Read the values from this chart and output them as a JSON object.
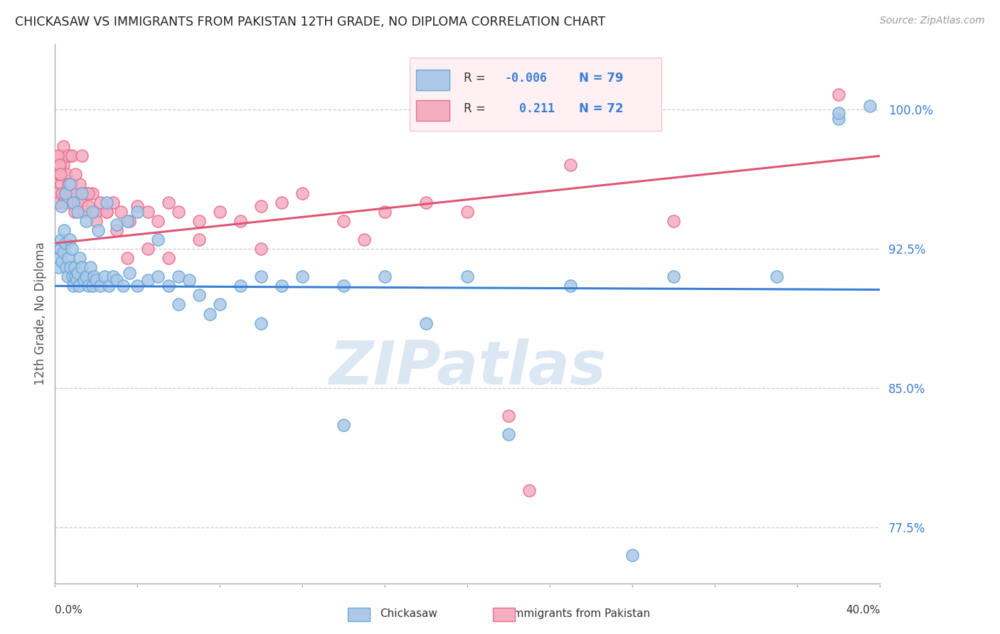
{
  "title": "CHICKASAW VS IMMIGRANTS FROM PAKISTAN 12TH GRADE, NO DIPLOMA CORRELATION CHART",
  "source_text": "Source: ZipAtlas.com",
  "ylabel_label": "12th Grade, No Diploma",
  "xmin": 0.0,
  "xmax": 40.0,
  "ymin": 74.5,
  "ymax": 103.5,
  "ylabel_ticks": [
    77.5,
    85.0,
    92.5,
    100.0
  ],
  "legend_blue_r": "-0.006",
  "legend_blue_n": "79",
  "legend_pink_r": "0.211",
  "legend_pink_n": "72",
  "blue_color": "#adc8e8",
  "pink_color": "#f5adc0",
  "blue_edge": "#6aaad8",
  "pink_edge": "#e87090",
  "trend_blue_color": "#3a7fd5",
  "trend_pink_color": "#e05575",
  "watermark_color": "#c5d8ee",
  "blue_trend_y0": 90.5,
  "blue_trend_y1": 90.3,
  "pink_trend_y0": 92.8,
  "pink_trend_y1": 97.5,
  "blue_x": [
    0.15,
    0.2,
    0.25,
    0.3,
    0.35,
    0.4,
    0.45,
    0.5,
    0.55,
    0.6,
    0.65,
    0.7,
    0.75,
    0.8,
    0.85,
    0.9,
    0.95,
    1.0,
    1.05,
    1.1,
    1.15,
    1.2,
    1.3,
    1.4,
    1.5,
    1.6,
    1.7,
    1.8,
    1.9,
    2.0,
    2.2,
    2.4,
    2.6,
    2.8,
    3.0,
    3.3,
    3.6,
    4.0,
    4.5,
    5.0,
    5.5,
    6.0,
    6.5,
    7.0,
    8.0,
    9.0,
    10.0,
    11.0,
    12.0,
    14.0,
    16.0,
    20.0,
    25.0,
    30.0,
    35.0,
    38.0,
    0.3,
    0.5,
    0.7,
    0.9,
    1.1,
    1.3,
    1.5,
    1.8,
    2.1,
    2.5,
    3.0,
    3.5,
    4.0,
    5.0,
    6.0,
    7.5,
    10.0,
    14.0,
    18.0,
    22.0,
    28.0,
    38.0,
    39.5
  ],
  "blue_y": [
    91.5,
    92.0,
    92.5,
    93.0,
    91.8,
    92.3,
    93.5,
    92.8,
    91.5,
    91.0,
    92.0,
    93.0,
    91.5,
    92.5,
    91.0,
    90.5,
    91.5,
    91.0,
    90.8,
    91.2,
    90.5,
    92.0,
    91.5,
    90.8,
    91.0,
    90.5,
    91.5,
    90.5,
    91.0,
    90.8,
    90.5,
    91.0,
    90.5,
    91.0,
    90.8,
    90.5,
    91.2,
    90.5,
    90.8,
    91.0,
    90.5,
    91.0,
    90.8,
    90.0,
    89.5,
    90.5,
    91.0,
    90.5,
    91.0,
    90.5,
    91.0,
    91.0,
    90.5,
    91.0,
    91.0,
    99.5,
    94.8,
    95.5,
    96.0,
    95.0,
    94.5,
    95.5,
    94.0,
    94.5,
    93.5,
    95.0,
    93.8,
    94.0,
    94.5,
    93.0,
    89.5,
    89.0,
    88.5,
    83.0,
    88.5,
    82.5,
    76.0,
    99.8,
    100.2
  ],
  "pink_x": [
    0.1,
    0.15,
    0.2,
    0.25,
    0.3,
    0.35,
    0.4,
    0.45,
    0.5,
    0.55,
    0.6,
    0.65,
    0.7,
    0.75,
    0.8,
    0.85,
    0.9,
    0.95,
    1.0,
    1.1,
    1.2,
    1.3,
    1.4,
    1.5,
    1.6,
    1.8,
    2.0,
    2.2,
    2.5,
    2.8,
    3.2,
    3.6,
    4.0,
    4.5,
    5.0,
    5.5,
    6.0,
    7.0,
    8.0,
    9.0,
    10.0,
    11.0,
    12.0,
    14.0,
    16.0,
    18.0,
    20.0,
    22.0,
    25.0,
    30.0,
    0.2,
    0.4,
    0.6,
    0.8,
    1.0,
    1.3,
    1.6,
    2.0,
    2.5,
    3.0,
    3.5,
    4.5,
    5.5,
    7.0,
    10.0,
    15.0,
    38.0,
    23.0,
    0.12,
    0.18,
    0.22,
    0.28
  ],
  "pink_y": [
    95.5,
    95.0,
    96.5,
    97.5,
    96.0,
    95.5,
    97.0,
    95.0,
    95.5,
    96.5,
    95.0,
    96.0,
    97.5,
    95.5,
    96.0,
    95.5,
    95.0,
    94.5,
    95.5,
    95.0,
    96.0,
    95.0,
    94.5,
    95.5,
    94.8,
    95.5,
    94.5,
    95.0,
    94.5,
    95.0,
    94.5,
    94.0,
    94.8,
    94.5,
    94.0,
    95.0,
    94.5,
    94.0,
    94.5,
    94.0,
    94.8,
    95.0,
    95.5,
    94.0,
    94.5,
    95.0,
    94.5,
    83.5,
    97.0,
    94.0,
    97.0,
    98.0,
    97.5,
    97.5,
    96.5,
    97.5,
    95.5,
    94.0,
    94.5,
    93.5,
    92.0,
    92.5,
    92.0,
    93.0,
    92.5,
    93.0,
    100.8,
    79.5,
    97.5,
    96.5,
    97.0,
    96.5
  ]
}
